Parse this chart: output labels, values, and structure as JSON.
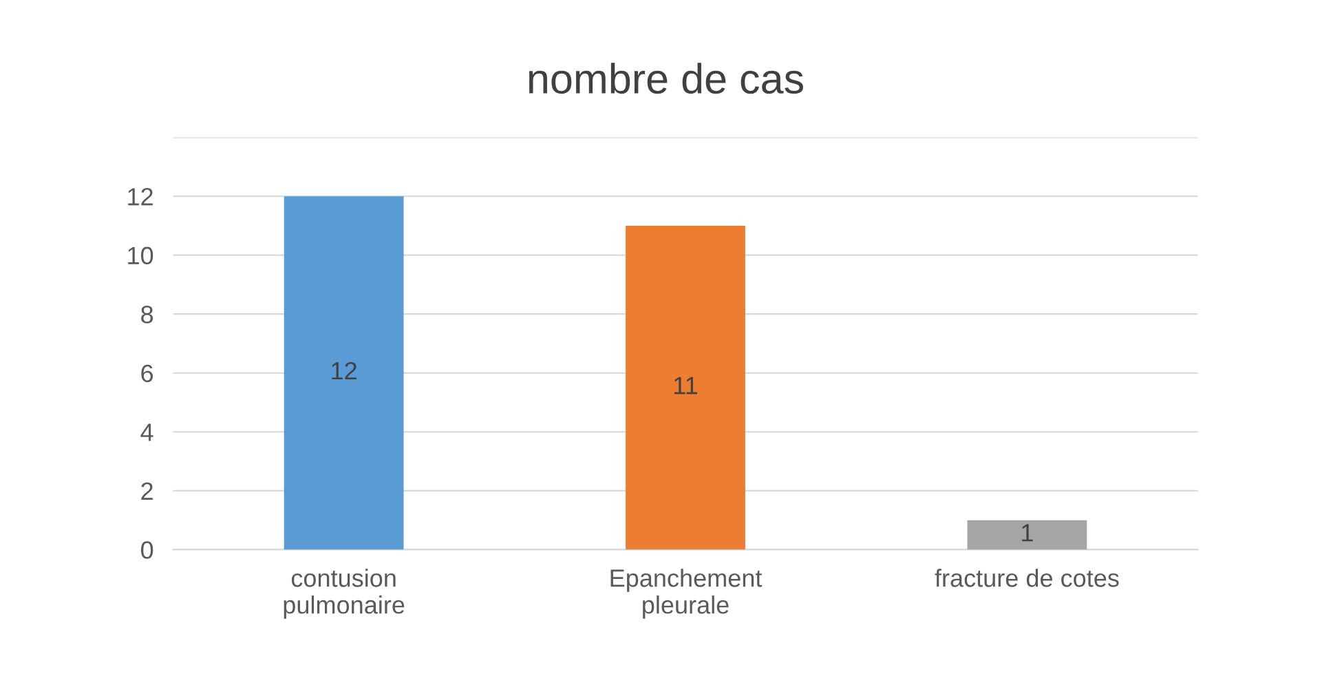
{
  "chart_data": {
    "type": "bar",
    "title": "nombre de cas",
    "categories": [
      "contusion\npulmonaire",
      "Epanchement\npleurale",
      "fracture de cotes"
    ],
    "values": [
      12,
      11,
      1
    ],
    "colors": [
      "#5b9bd5",
      "#ed7d31",
      "#a5a5a5"
    ],
    "ylim": [
      0,
      14
    ],
    "yticks": [
      0,
      2,
      4,
      6,
      8,
      10,
      12,
      {
        "value": 14,
        "label": null
      }
    ],
    "grid": "y",
    "data_labels": true
  }
}
